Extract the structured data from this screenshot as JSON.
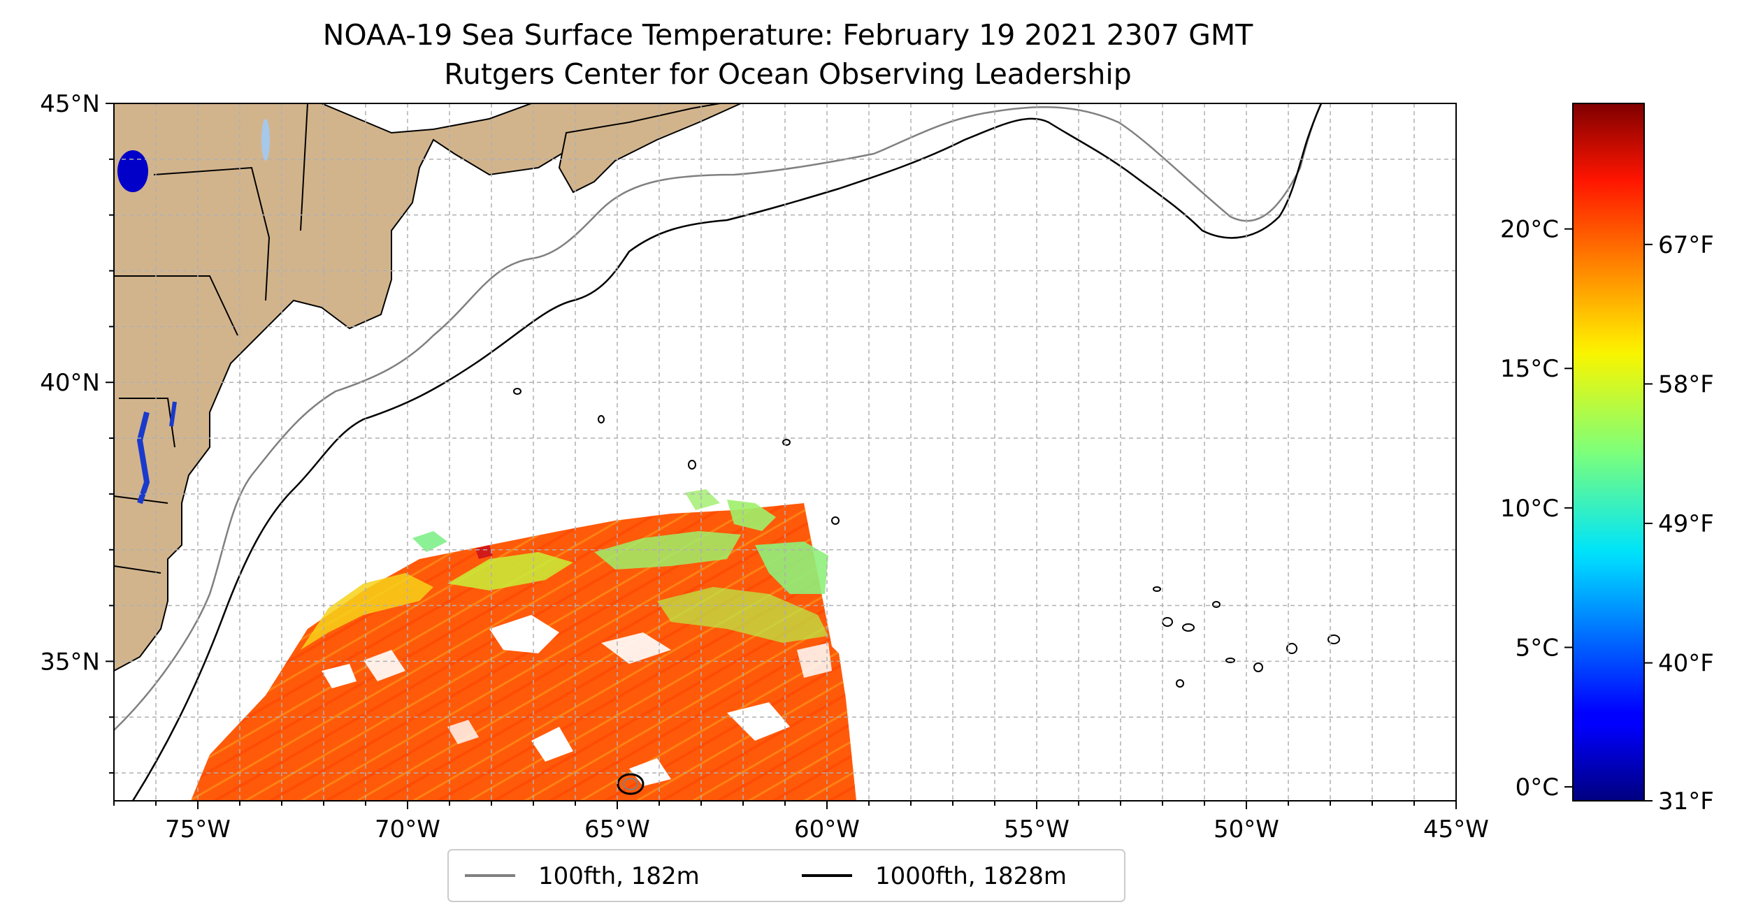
{
  "title": {
    "line1": "NOAA-19 Sea Surface Temperature: February 19 2021 2307 GMT",
    "line2": "Rutgers Center for Ocean Observing Leadership"
  },
  "map": {
    "lon_range": [
      -77,
      -45
    ],
    "lat_range": [
      32.5,
      45
    ],
    "lon_ticks": [
      {
        "value": -75,
        "label": "75°W"
      },
      {
        "value": -70,
        "label": "70°W"
      },
      {
        "value": -65,
        "label": "65°W"
      },
      {
        "value": -60,
        "label": "60°W"
      },
      {
        "value": -55,
        "label": "55°W"
      },
      {
        "value": -50,
        "label": "50°W"
      },
      {
        "value": -45,
        "label": "45°W"
      }
    ],
    "lat_ticks": [
      {
        "value": 35,
        "label": "35°N"
      },
      {
        "value": 40,
        "label": "40°N"
      },
      {
        "value": 45,
        "label": "45°N"
      }
    ],
    "grid": true,
    "land_color": "#d2b48c",
    "lake_color": "#a6c8ea"
  },
  "colorbar": {
    "colormap": "jet",
    "range_c": [
      -0.5,
      24.5
    ],
    "celsius_ticks": [
      {
        "value": 0,
        "label": "0°C"
      },
      {
        "value": 5,
        "label": "5°C"
      },
      {
        "value": 10,
        "label": "10°C"
      },
      {
        "value": 15,
        "label": "15°C"
      },
      {
        "value": 20,
        "label": "20°C"
      }
    ],
    "fahrenheit_ticks": [
      {
        "value": 31,
        "label": "31°F"
      },
      {
        "value": 40,
        "label": "40°F"
      },
      {
        "value": 49,
        "label": "49°F"
      },
      {
        "value": 58,
        "label": "58°F"
      },
      {
        "value": 67,
        "label": "67°F"
      }
    ]
  },
  "legend": {
    "items": [
      {
        "label": "100fth, 182m",
        "color": "#808080"
      },
      {
        "label": "1000fth, 1828m",
        "color": "#000000"
      }
    ]
  }
}
